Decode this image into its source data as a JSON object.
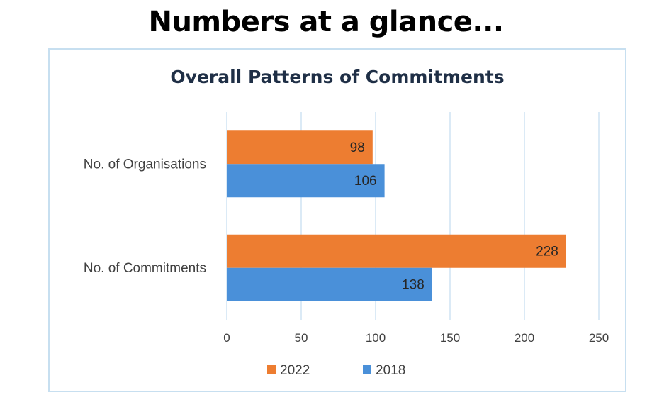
{
  "page": {
    "heading": "Numbers at a glance..."
  },
  "chart_data": {
    "type": "bar",
    "orientation": "horizontal",
    "title": "Overall Patterns of Commitments",
    "categories": [
      "No. of Organisations",
      "No. of Commitments"
    ],
    "series": [
      {
        "name": "2022",
        "values": [
          98,
          228
        ],
        "color": "#ed7d31"
      },
      {
        "name": "2018",
        "values": [
          106,
          138
        ],
        "color": "#4a90d9"
      }
    ],
    "x_ticks": [
      0,
      50,
      100,
      150,
      200,
      250
    ],
    "xlim": [
      0,
      250
    ],
    "xlabel": "",
    "ylabel": "",
    "grid": true,
    "legend_position": "bottom",
    "gridline_color": "#cfe4f3"
  }
}
